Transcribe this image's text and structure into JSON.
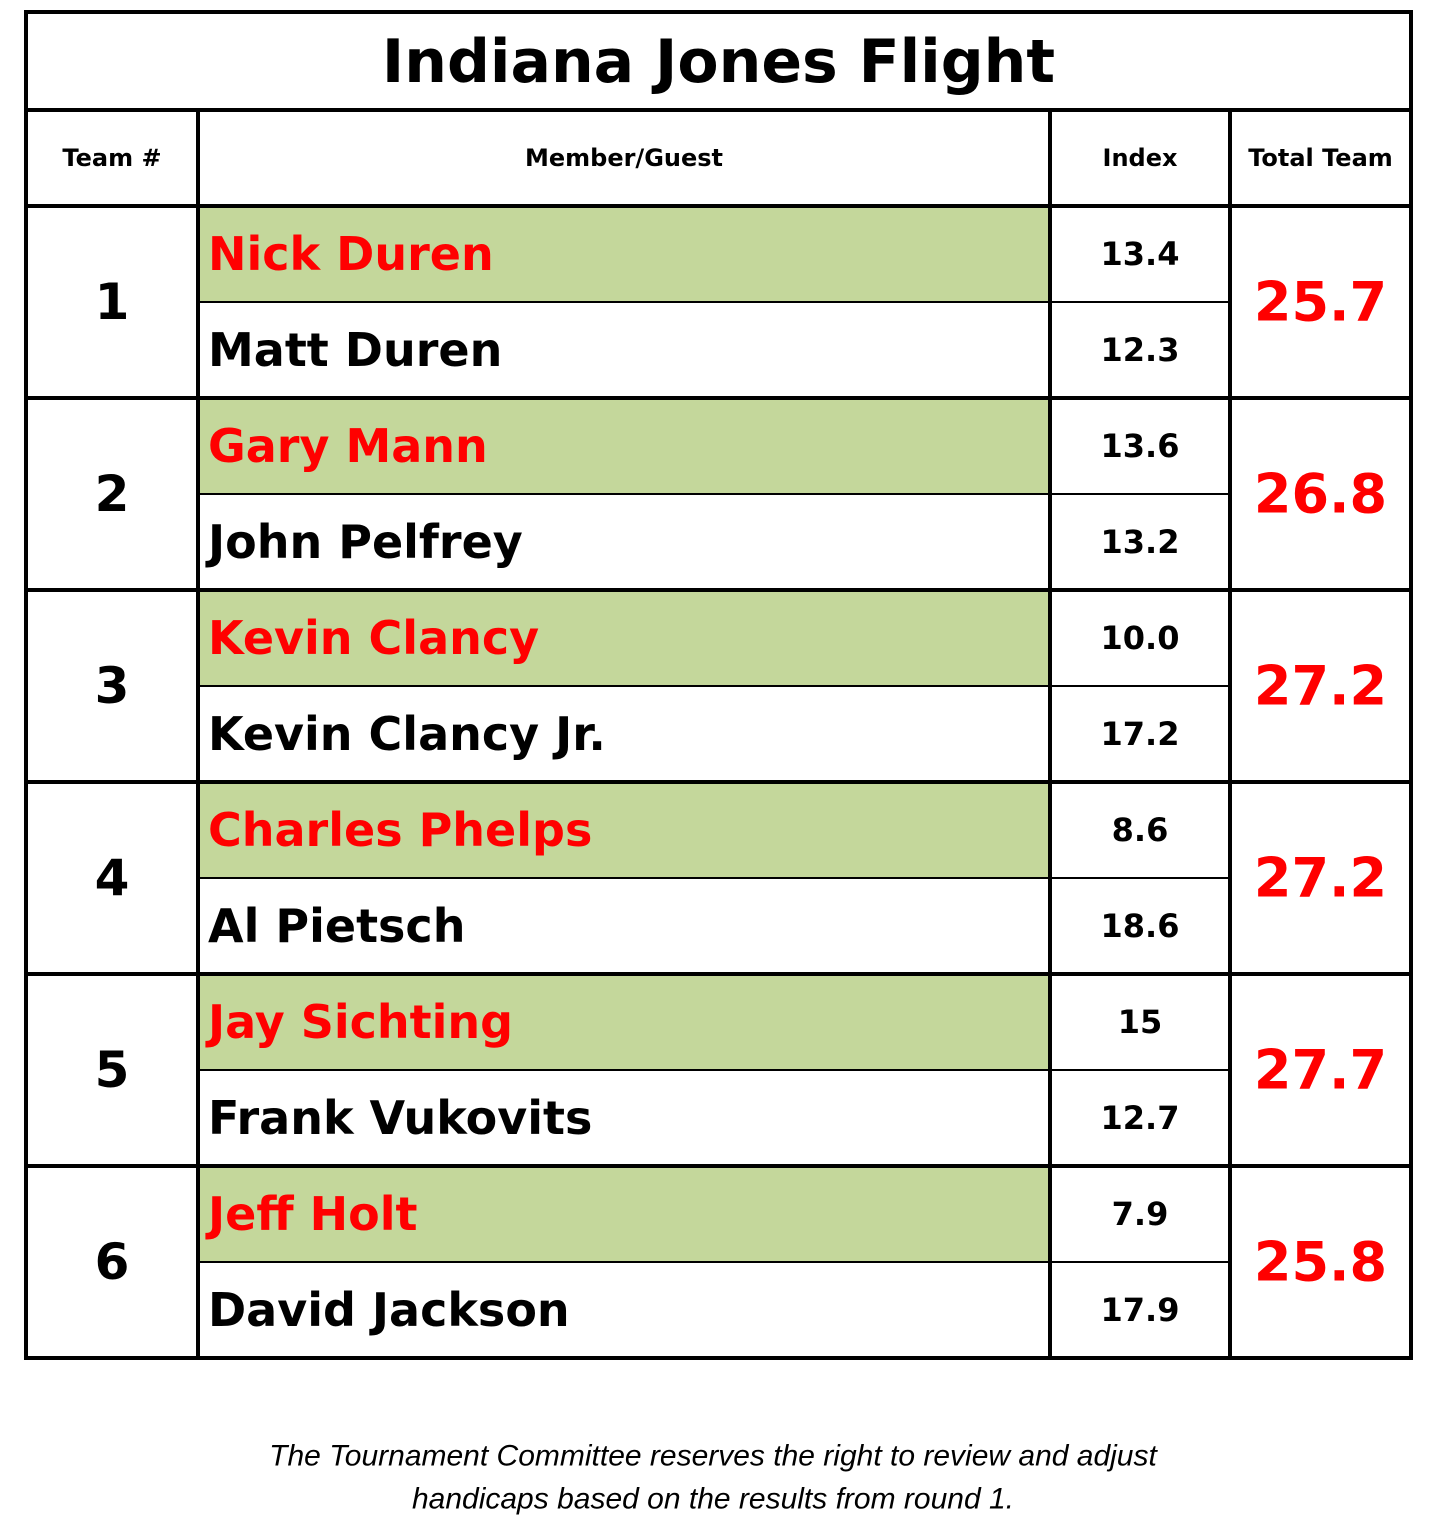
{
  "title": "Indiana Jones Flight",
  "headers": [
    "Team #",
    "Member/Guest",
    "Index",
    "Total Team"
  ],
  "teams": [
    {
      "number": "1",
      "members": [
        {
          "name": "Nick Duren",
          "index": "13.4"
        },
        {
          "name": "Matt Duren",
          "index": "12.3"
        }
      ],
      "total": "25.7"
    },
    {
      "number": "2",
      "members": [
        {
          "name": "Gary Mann",
          "index": "13.6"
        },
        {
          "name": "John Pelfrey",
          "index": "13.2"
        }
      ],
      "total": "26.8"
    },
    {
      "number": "3",
      "members": [
        {
          "name": "Kevin Clancy",
          "index": "10.0"
        },
        {
          "name": "Kevin Clancy Jr.",
          "index": "17.2"
        }
      ],
      "total": "27.2"
    },
    {
      "number": "4",
      "members": [
        {
          "name": "Charles Phelps",
          "index": "8.6"
        },
        {
          "name": "Al Pietsch",
          "index": "18.6"
        }
      ],
      "total": "27.2"
    },
    {
      "number": "5",
      "members": [
        {
          "name": "Jay Sichting",
          "index": "15"
        },
        {
          "name": "Frank Vukovits",
          "index": "12.7"
        }
      ],
      "total": "27.7"
    },
    {
      "number": "6",
      "members": [
        {
          "name": "Jeff Holt",
          "index": "7.9"
        },
        {
          "name": "David Jackson",
          "index": "17.9"
        }
      ],
      "total": "25.8"
    }
  ],
  "footer": [
    "The Tournament Committee reserves the right to review and adjust",
    "handicaps based on the results from round 1."
  ]
}
